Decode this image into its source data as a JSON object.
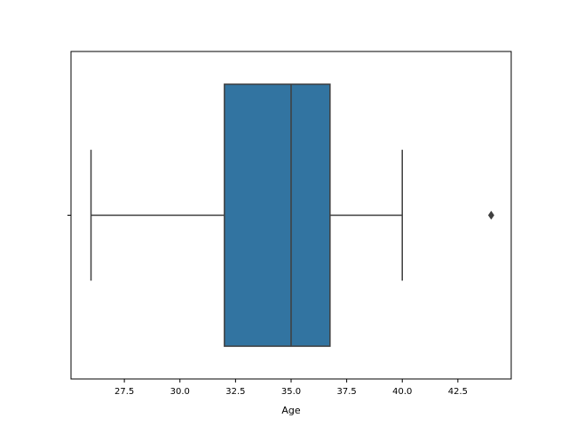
{
  "chart_data": {
    "type": "box",
    "x_label": "Age",
    "orientation": "horizontal",
    "categories": [
      null
    ],
    "series": [
      {
        "color": "#3274a1",
        "line_color": "#3f3f3f",
        "whislo": 26,
        "q1": 32,
        "med": 35,
        "q3": 36.75,
        "whishi": 40,
        "fliers": [
          44
        ]
      }
    ],
    "xlim": [
      25.1,
      44.9
    ],
    "xticks": [
      27.5,
      {
        "value": 30,
        "label": "30.0"
      },
      32.5,
      {
        "value": 35,
        "label": "35.0"
      },
      37.5,
      {
        "value": 40,
        "label": "40.0"
      },
      42.5
    ]
  }
}
